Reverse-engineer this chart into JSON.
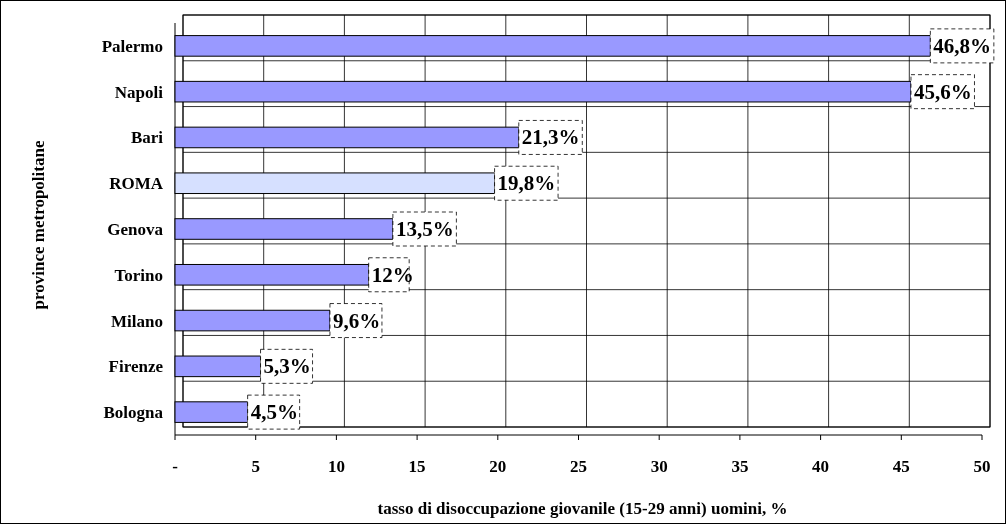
{
  "chart_data": {
    "type": "bar",
    "orientation": "horizontal",
    "xlabel": "tasso di disoccupazione giovanile (15-29 anni) uomini, %",
    "ylabel": "province metropolitane",
    "categories": [
      "Palermo",
      "Napoli",
      "Bari",
      "ROMA",
      "Genova",
      "Torino",
      "Milano",
      "Firenze",
      "Bologna"
    ],
    "values": [
      46.8,
      45.6,
      21.3,
      19.8,
      13.5,
      12,
      9.6,
      5.3,
      4.5
    ],
    "colors": [
      "#9999ff",
      "#9999ff",
      "#9999ff",
      "#d6e0ff",
      "#9999ff",
      "#9999ff",
      "#9999ff",
      "#9999ff",
      "#9999ff"
    ],
    "value_labels": [
      "46,8%",
      "45,6%",
      "21,3%",
      "19,8%",
      "13,5%",
      "12%",
      "9,6%",
      "5,3%",
      "4,5%"
    ],
    "xlim": [
      0,
      50
    ],
    "xticks": [
      {
        "value": 0,
        "label": "-"
      },
      5,
      10,
      15,
      20,
      25,
      30,
      35,
      40,
      45,
      50
    ],
    "grid": true
  }
}
